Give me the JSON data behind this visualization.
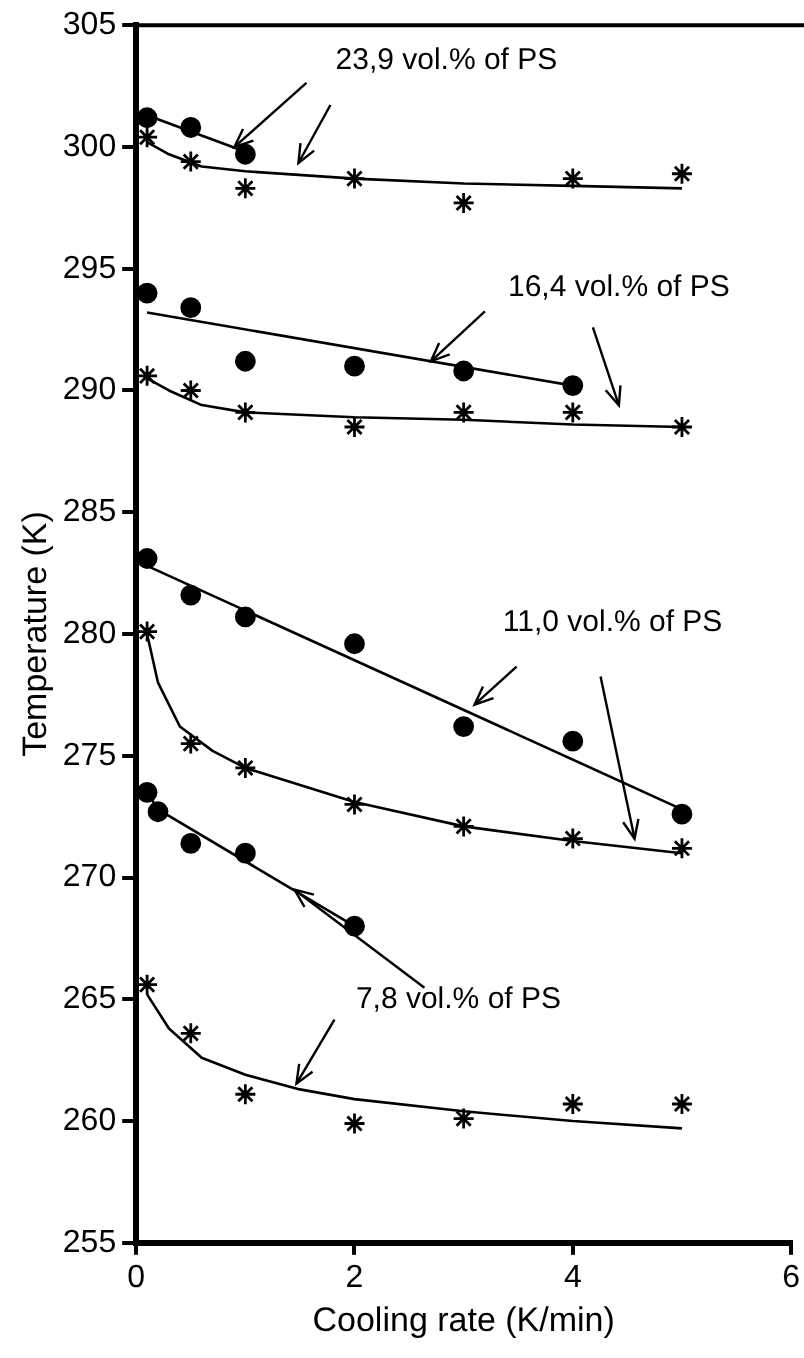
{
  "chart_data": {
    "type": "scatter",
    "xlabel": "Cooling rate (K/min)",
    "ylabel": "Temperature (K)",
    "xlim": [
      0,
      6
    ],
    "xticks": [
      0,
      2,
      4,
      6
    ],
    "ylim": [
      255,
      305
    ],
    "yticks": [
      255,
      260,
      265,
      270,
      275,
      280,
      285,
      290,
      295,
      300,
      305
    ],
    "grid": false,
    "legend": false,
    "annotations": [
      {
        "text": "23,9 vol.% of PS",
        "x": 0.9,
        "y": 300.0
      },
      {
        "text": "16,4 vol.% of PS",
        "x": 2.7,
        "y": 291.2
      },
      {
        "text": "11,0 vol.% of PS",
        "x": 3.1,
        "y": 277.1
      },
      {
        "text": "7,8 vol.% of PS",
        "x": 1.45,
        "y": 269.5
      }
    ],
    "series": [
      {
        "type": "scatter",
        "marker": "circle",
        "color": "#000000",
        "x": [
          0.1,
          0.5,
          1
        ],
        "values": [
          301.2,
          300.8,
          299.7
        ]
      },
      {
        "type": "line",
        "marker": "none",
        "color": "#000000",
        "x": [
          0.1,
          1
        ],
        "values": [
          301.3,
          299.8
        ]
      },
      {
        "type": "scatter",
        "marker": "cross",
        "color": "#000000",
        "x": [
          0.1,
          0.5,
          1,
          2,
          3,
          4,
          5
        ],
        "values": [
          300.4,
          299.4,
          298.3,
          298.7,
          297.7,
          298.7,
          298.9
        ]
      },
      {
        "type": "line",
        "marker": "none",
        "color": "#000000",
        "x": [
          0.1,
          0.3,
          0.6,
          1,
          2,
          3,
          4,
          5
        ],
        "values": [
          300.2,
          299.7,
          299.2,
          299.0,
          298.7,
          298.5,
          298.4,
          298.3
        ]
      },
      {
        "type": "scatter",
        "marker": "circle",
        "color": "#000000",
        "x": [
          0.1,
          0.5,
          1,
          2,
          3,
          4
        ],
        "values": [
          294.0,
          293.4,
          291.2,
          291.0,
          290.8,
          290.2
        ]
      },
      {
        "type": "line",
        "marker": "none",
        "color": "#000000",
        "x": [
          0.1,
          4
        ],
        "values": [
          293.2,
          290.2
        ]
      },
      {
        "type": "scatter",
        "marker": "cross",
        "color": "#000000",
        "x": [
          0.1,
          0.5,
          1,
          2,
          3,
          4,
          5
        ],
        "values": [
          290.6,
          290.0,
          289.1,
          288.5,
          289.1,
          289.1,
          288.5
        ]
      },
      {
        "type": "line",
        "marker": "none",
        "color": "#000000",
        "x": [
          0.1,
          0.3,
          0.6,
          1,
          2,
          3,
          4,
          5
        ],
        "values": [
          290.5,
          290.0,
          289.4,
          289.1,
          288.9,
          288.8,
          288.6,
          288.5
        ]
      },
      {
        "type": "scatter",
        "marker": "circle",
        "color": "#000000",
        "x": [
          0.1,
          0.5,
          1,
          2,
          3,
          4,
          5
        ],
        "values": [
          283.1,
          281.6,
          280.7,
          279.6,
          276.2,
          275.6,
          272.6
        ]
      },
      {
        "type": "line",
        "marker": "none",
        "color": "#000000",
        "x": [
          0.1,
          5
        ],
        "values": [
          282.8,
          272.8
        ]
      },
      {
        "type": "scatter",
        "marker": "cross",
        "color": "#000000",
        "x": [
          0.1,
          0.5,
          1,
          2,
          3,
          4,
          5
        ],
        "values": [
          280.1,
          275.5,
          274.5,
          273.0,
          272.1,
          271.6,
          271.2
        ]
      },
      {
        "type": "line",
        "marker": "none",
        "color": "#000000",
        "x": [
          0.1,
          0.2,
          0.4,
          0.7,
          1,
          2,
          3,
          4,
          5
        ],
        "values": [
          280.0,
          278.0,
          276.2,
          275.2,
          274.5,
          273.1,
          272.1,
          271.5,
          271.0
        ]
      },
      {
        "type": "scatter",
        "marker": "circle",
        "color": "#000000",
        "x": [
          0.1,
          0.2,
          0.5,
          1,
          2
        ],
        "values": [
          273.5,
          272.7,
          271.4,
          271.0,
          268.0
        ]
      },
      {
        "type": "line",
        "marker": "none",
        "color": "#000000",
        "x": [
          0.1,
          0.2,
          2
        ],
        "values": [
          273.5,
          272.8,
          268.0
        ]
      },
      {
        "type": "scatter",
        "marker": "cross",
        "color": "#000000",
        "x": [
          0.1,
          0.5,
          1,
          2,
          3,
          4,
          5
        ],
        "values": [
          265.6,
          263.6,
          261.1,
          259.9,
          260.1,
          260.7,
          260.7
        ]
      },
      {
        "type": "line",
        "marker": "none",
        "color": "#000000",
        "x": [
          0.1,
          0.3,
          0.6,
          1,
          1.5,
          2,
          3,
          4,
          5
        ],
        "values": [
          265.2,
          263.8,
          262.6,
          261.9,
          261.3,
          260.9,
          260.4,
          260.0,
          259.7
        ]
      }
    ]
  }
}
